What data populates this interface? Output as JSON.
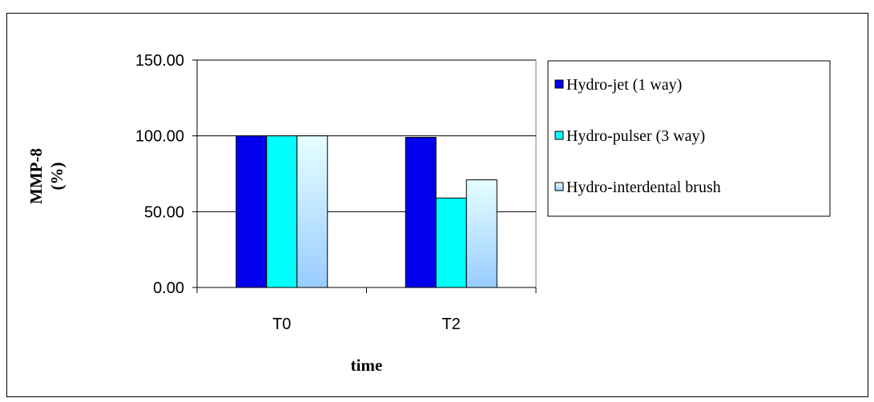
{
  "chart_data": {
    "type": "bar",
    "title": "",
    "xlabel": "time",
    "ylabel_lines": [
      "MMP-8",
      "(%)"
    ],
    "categories": [
      "T0",
      "T2"
    ],
    "series": [
      {
        "name": "Hydro-jet (1 way)",
        "values": [
          100.0,
          99.0
        ],
        "color": "#0000ee",
        "fill": "solid"
      },
      {
        "name": "Hydro-pulser (3 way)",
        "values": [
          100.0,
          59.0
        ],
        "color": "#00ffff",
        "fill": "solid"
      },
      {
        "name": "Hydro-interdental brush",
        "values": [
          100.0,
          71.0
        ],
        "color": "#99ccff",
        "fill": "gradient"
      }
    ],
    "ylim": [
      0,
      150
    ],
    "y_ticks": [
      0,
      50,
      100,
      150
    ],
    "y_tick_labels": [
      "0.00",
      "50.00",
      "100.00",
      "150.00"
    ],
    "grid": true,
    "legend_position": "right"
  }
}
